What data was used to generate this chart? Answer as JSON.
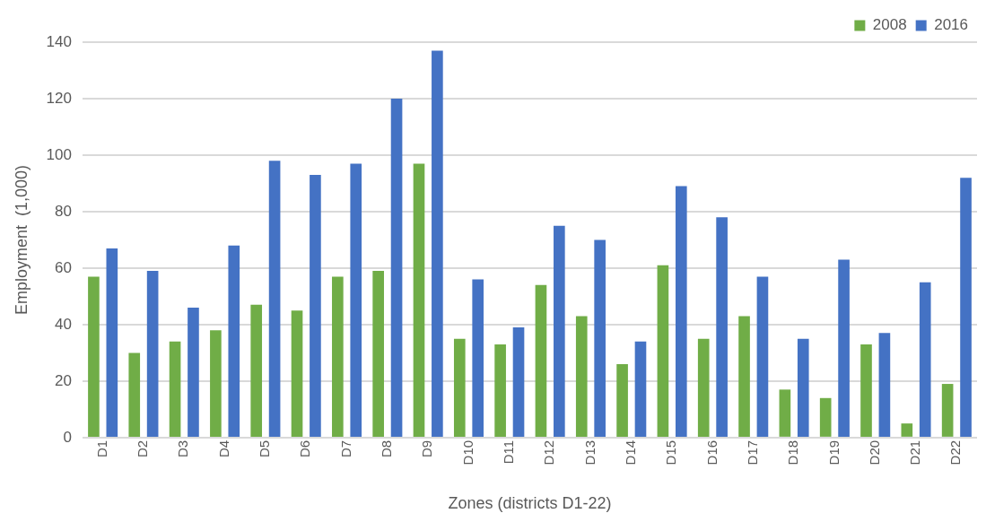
{
  "chart_data": {
    "type": "bar",
    "xlabel": "Zones (districts D1-22)",
    "ylabel": "Employment  (1,000)",
    "categories": [
      "D1",
      "D2",
      "D3",
      "D4",
      "D5",
      "D6",
      "D7",
      "D8",
      "D9",
      "D10",
      "D11",
      "D12",
      "D13",
      "D14",
      "D15",
      "D16",
      "D17",
      "D18",
      "D19",
      "D20",
      "D21",
      "D22"
    ],
    "series": [
      {
        "name": "2008",
        "color": "#70ad47",
        "values": [
          57,
          30,
          34,
          38,
          47,
          45,
          57,
          59,
          97,
          35,
          33,
          54,
          43,
          26,
          61,
          35,
          43,
          17,
          14,
          33,
          5,
          19
        ]
      },
      {
        "name": "2016",
        "color": "#4472c4",
        "values": [
          67,
          59,
          46,
          68,
          98,
          93,
          97,
          120,
          137,
          56,
          39,
          75,
          70,
          34,
          89,
          78,
          57,
          35,
          63,
          37,
          55,
          92
        ]
      }
    ],
    "ylim": [
      0,
      140
    ],
    "yticks": [
      0,
      20,
      40,
      60,
      80,
      100,
      120,
      140
    ],
    "grid": "y",
    "legend": "top right"
  }
}
